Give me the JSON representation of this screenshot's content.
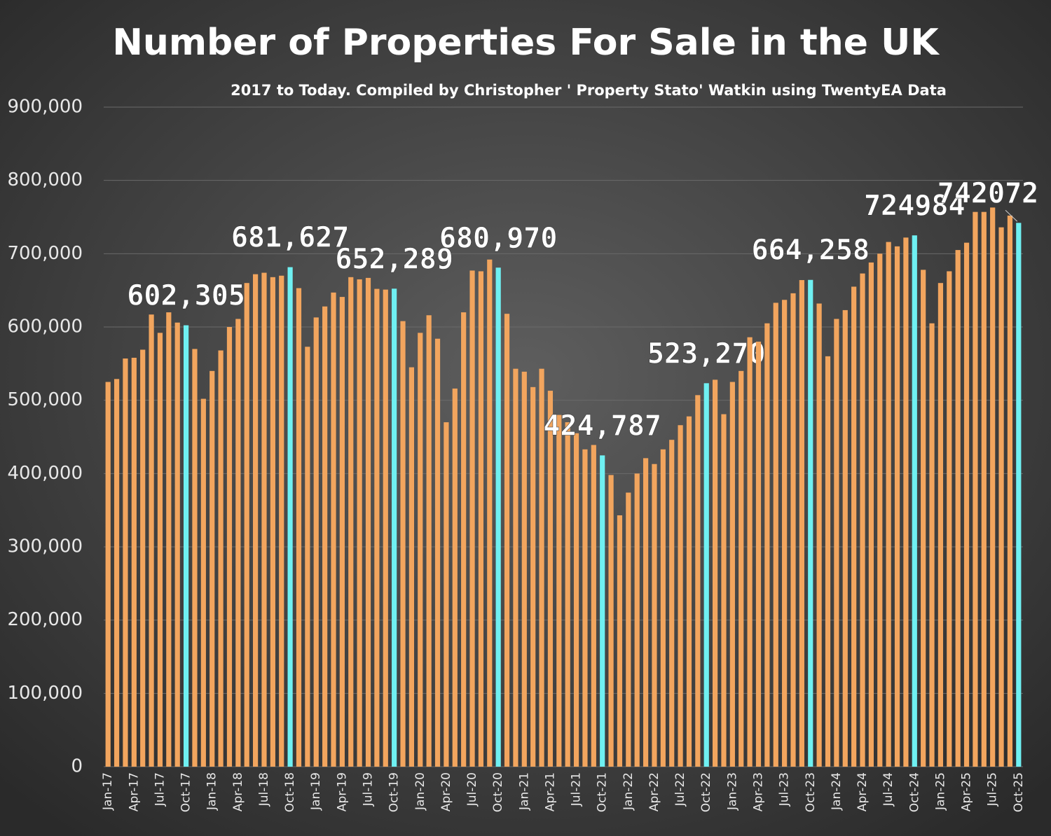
{
  "chart_data": {
    "type": "bar",
    "title": "Number of Properties For Sale in the UK",
    "subtitle": "2017 to Today. Compiled by Christopher ' Property Stato' Watkin using TwentyEA Data",
    "categories": [
      "Jan-17",
      null,
      null,
      "Apr-17",
      null,
      null,
      "Jul-17",
      null,
      null,
      "Oct-17",
      null,
      null,
      "Jan-18",
      null,
      null,
      "Apr-18",
      null,
      null,
      "Jul-18",
      null,
      null,
      "Oct-18",
      null,
      null,
      "Jan-19",
      null,
      null,
      "Apr-19",
      null,
      null,
      "Jul-19",
      null,
      null,
      "Oct-19",
      null,
      null,
      "Jan-20",
      null,
      null,
      "Apr-20",
      null,
      null,
      "Jul-20",
      null,
      null,
      "Oct-20",
      null,
      null,
      "Jan-21",
      null,
      null,
      "Apr-21",
      null,
      null,
      "Jul-21",
      null,
      null,
      "Oct-21",
      null,
      null,
      "Jan-22",
      null,
      null,
      "Apr-22",
      null,
      null,
      "Jul-22",
      null,
      null,
      "Oct-22",
      null,
      null,
      "Jan-23",
      null,
      null,
      "Apr-23",
      null,
      null,
      "Jul-23",
      null,
      null,
      "Oct-23",
      null,
      null,
      "Jan-24",
      null,
      null,
      "Apr-24",
      null,
      null,
      "Jul-24",
      null,
      null,
      "Oct-24",
      null,
      null,
      "Jan-25",
      null,
      null,
      "Apr-25",
      null,
      null,
      "Jul-25",
      null,
      null,
      "Oct-25"
    ],
    "values": [
      525000,
      529000,
      557000,
      558000,
      569000,
      617000,
      592000,
      620000,
      606000,
      602305,
      570000,
      502000,
      540000,
      568000,
      600000,
      611000,
      660000,
      672000,
      674000,
      668000,
      670000,
      681627,
      653000,
      573000,
      613000,
      628000,
      647000,
      641000,
      668000,
      665000,
      667000,
      652000,
      651000,
      652289,
      608000,
      545000,
      592000,
      616000,
      584000,
      470000,
      516000,
      620000,
      677000,
      676000,
      692000,
      680970,
      618000,
      543000,
      539000,
      518000,
      543000,
      513000,
      480000,
      470000,
      455000,
      433000,
      439000,
      424787,
      398000,
      343000,
      374000,
      400000,
      421000,
      413000,
      433000,
      446000,
      466000,
      478000,
      507000,
      523270,
      528000,
      481000,
      525000,
      540000,
      586000,
      580000,
      605000,
      633000,
      637000,
      646000,
      664000,
      664258,
      632000,
      560000,
      611000,
      623000,
      655000,
      673000,
      688000,
      700000,
      716000,
      710000,
      722000,
      724984,
      678000,
      605000,
      660000,
      676000,
      705000,
      715000,
      757000,
      757000,
      763000,
      736000,
      752000,
      742072
    ],
    "value_labels": [
      null,
      null,
      null,
      null,
      null,
      null,
      null,
      null,
      null,
      "602,305",
      null,
      null,
      null,
      null,
      null,
      null,
      null,
      null,
      null,
      null,
      null,
      "681,627",
      null,
      null,
      null,
      null,
      null,
      null,
      null,
      null,
      null,
      null,
      null,
      "652,289",
      null,
      null,
      null,
      null,
      null,
      null,
      null,
      null,
      null,
      null,
      null,
      "680,970",
      null,
      null,
      null,
      null,
      null,
      null,
      null,
      null,
      null,
      null,
      null,
      "424,787",
      null,
      null,
      null,
      null,
      null,
      null,
      null,
      null,
      null,
      null,
      null,
      "523,270",
      null,
      null,
      null,
      null,
      null,
      null,
      null,
      null,
      null,
      null,
      null,
      "664,258",
      null,
      null,
      null,
      null,
      null,
      null,
      null,
      null,
      null,
      null,
      null,
      "724984",
      null,
      null,
      null,
      null,
      null,
      null,
      null,
      null,
      null,
      null,
      null,
      "742072"
    ],
    "color": "#f2a55e",
    "highlight_color": "#6ff0f2",
    "ylim": [
      0,
      900000
    ],
    "yticks": [
      0,
      {
        "value": 100000,
        "label": "100,000"
      },
      {
        "value": 200000,
        "label": "200,000"
      },
      {
        "value": 300000,
        "label": "300,000"
      },
      {
        "value": 400000,
        "label": "400,000"
      },
      {
        "value": 500000,
        "label": "500,000"
      },
      {
        "value": 600000,
        "label": "600,000"
      },
      {
        "value": 700000,
        "label": "700,000"
      },
      {
        "value": 800000,
        "label": "800,000"
      },
      {
        "value": 900000,
        "label": "900,000"
      }
    ],
    "grid": true
  }
}
